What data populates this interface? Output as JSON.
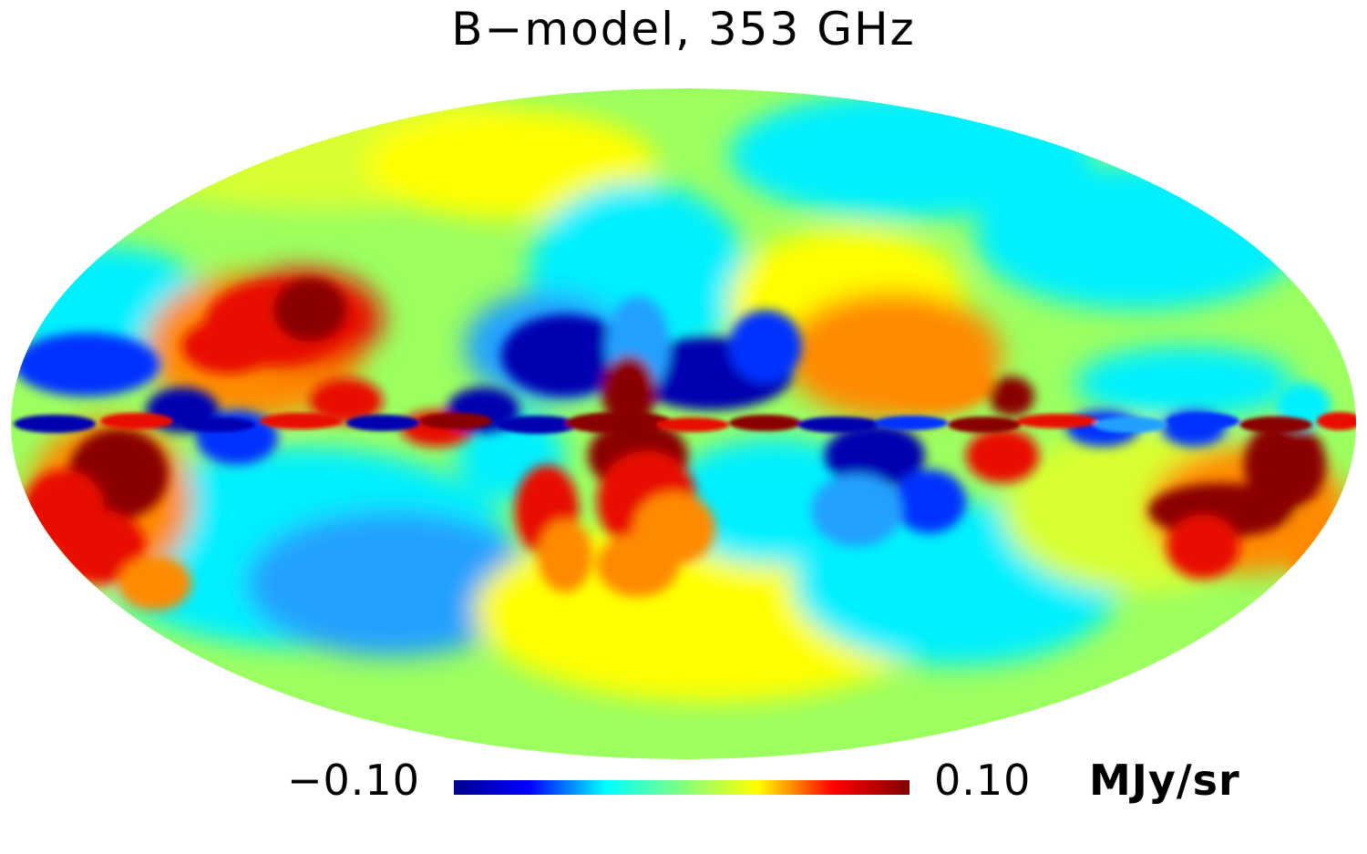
{
  "title": "B−model, 353 GHz",
  "projection": "mollweide",
  "colorbar": {
    "min_label": "−0.10",
    "max_label": "0.10",
    "unit": "MJy/sr",
    "min": -0.1,
    "max": 0.1,
    "colormap": [
      "#00008f",
      "#0000ff",
      "#00ffff",
      "#80ff80",
      "#ffff00",
      "#ff0000",
      "#800000"
    ]
  },
  "colors": {
    "background": "#ffffff",
    "text": "#000000"
  }
}
